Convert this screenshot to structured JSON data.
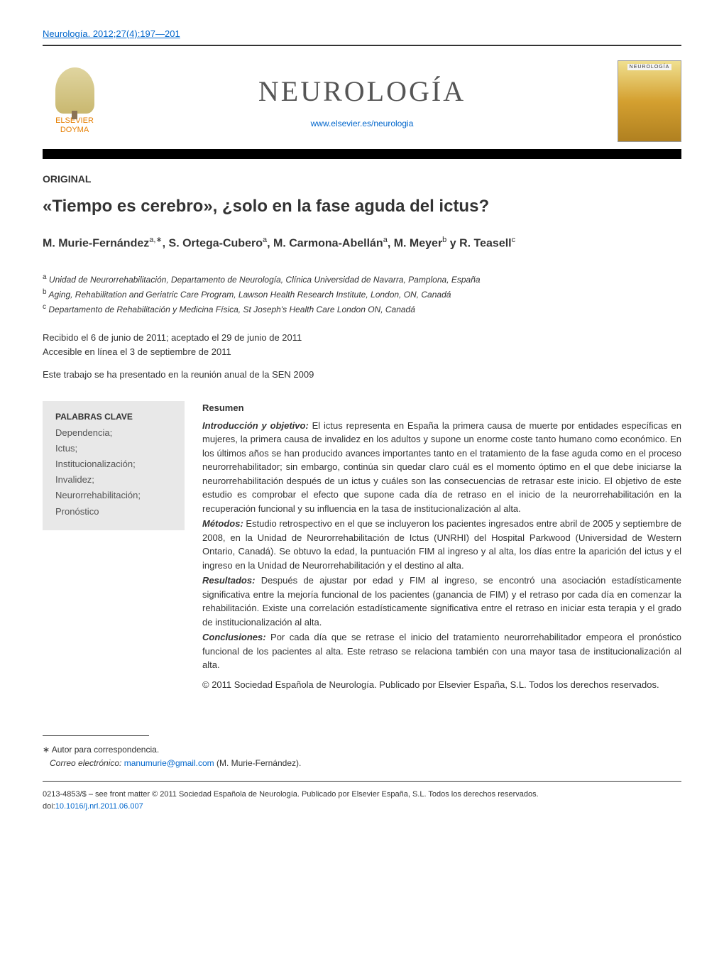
{
  "citation": "Neurología. 2012;27(4):197—201",
  "publisher": {
    "name_line1": "ELSEVIER",
    "name_line2": "DOYMA"
  },
  "journal": {
    "title": "NEUROLOGÍA",
    "url": "www.elsevier.es/neurologia",
    "cover_label": "NEUROLOGÍA"
  },
  "article": {
    "type": "ORIGINAL",
    "title": "«Tiempo es cerebro», ¿solo en la fase aguda del ictus?",
    "authors_html": "M. Murie-Fernández",
    "author1": "M. Murie-Fernández",
    "author1_aff": "a,∗",
    "author2": ", S. Ortega-Cubero",
    "author2_aff": "a",
    "author3": ", M. Carmona-Abellán",
    "author3_aff": "a",
    "author4": ", M. Meyer",
    "author4_aff": "b",
    "author_and": " y ",
    "author5": "R. Teasell",
    "author5_aff": "c"
  },
  "affiliations": {
    "a_sup": "a",
    "a": " Unidad de Neurorrehabilitación, Departamento de Neurología, Clínica Universidad de Navarra, Pamplona, España",
    "b_sup": "b",
    "b": " Aging, Rehabilitation and Geriatric Care Program, Lawson Health Research Institute, London, ON, Canadá",
    "c_sup": "c",
    "c": " Departamento de Rehabilitación y Medicina Física, St Joseph's Health Care London ON, Canadá"
  },
  "dates": {
    "received": "Recibido el 6 de junio de 2011; aceptado el 29 de junio de 2011",
    "online": "Accesible en línea el 3 de septiembre de 2011"
  },
  "presentation": "Este trabajo se ha presentado en la reunión anual de la SEN 2009",
  "keywords": {
    "title": "PALABRAS CLAVE",
    "items": "Dependencia;\nIctus;\nInstitucionalización;\nInvalidez;\nNeurorrehabilitación;\nPronóstico"
  },
  "abstract": {
    "heading": "Resumen",
    "intro_label": "Introducción y objetivo:",
    "intro_text": " El ictus representa en España la primera causa de muerte por entidades específicas en mujeres, la primera causa de invalidez en los adultos y supone un enorme coste tanto humano como económico. En los últimos años se han producido avances importantes tanto en el tratamiento de la fase aguda como en el proceso neurorrehabilitador; sin embargo, continúa sin quedar claro cuál es el momento óptimo en el que debe iniciarse la neurorrehabilitación después de un ictus y cuáles son las consecuencias de retrasar este inicio. El objetivo de este estudio es comprobar el efecto que supone cada día de retraso en el inicio de la neurorrehabilitación en la recuperación funcional y su influencia en la tasa de institucionalización al alta.",
    "methods_label": "Métodos:",
    "methods_text": " Estudio retrospectivo en el que se incluyeron los pacientes ingresados entre abril de 2005 y septiembre de 2008, en la Unidad de Neurorrehabilitación de Ictus (UNRHI) del Hospital Parkwood (Universidad de Western Ontario, Canadá). Se obtuvo la edad, la puntuación FIM al ingreso y al alta, los días entre la aparición del ictus y el ingreso en la Unidad de Neurorrehabilitación y el destino al alta.",
    "results_label": "Resultados:",
    "results_text": " Después de ajustar por edad y FIM al ingreso, se encontró una asociación estadísticamente significativa entre la mejoría funcional de los pacientes (ganancia de FIM) y el retraso por cada día en comenzar la rehabilitación. Existe una correlación estadísticamente significativa entre el retraso en iniciar esta terapia y el grado de institucionalización al alta.",
    "conclusions_label": "Conclusiones:",
    "conclusions_text": " Por cada día que se retrase el inicio del tratamiento neurorrehabilitador empeora el pronóstico funcional de los pacientes al alta. Este retraso se relaciona también con una mayor tasa de institucionalización al alta.",
    "copyright": "© 2011 Sociedad Española de Neurología. Publicado por Elsevier España, S.L. Todos los derechos reservados."
  },
  "footer": {
    "corresp_marker": "∗",
    "corresp_label": " Autor para correspondencia.",
    "email_label": "Correo electrónico:",
    "email": " manumurie@gmail.com",
    "email_suffix": " (M. Murie-Fernández).",
    "issn": "0213-4853/$ – see front matter © 2011 Sociedad Española de Neurología. Publicado por Elsevier España, S.L. Todos los derechos reservados.",
    "doi_prefix": "doi:",
    "doi": "10.1016/j.nrl.2011.06.007"
  },
  "colors": {
    "link": "#0066cc",
    "publisher_orange": "#e67e00",
    "text": "#333333",
    "keywords_bg": "#e8e8e8"
  }
}
